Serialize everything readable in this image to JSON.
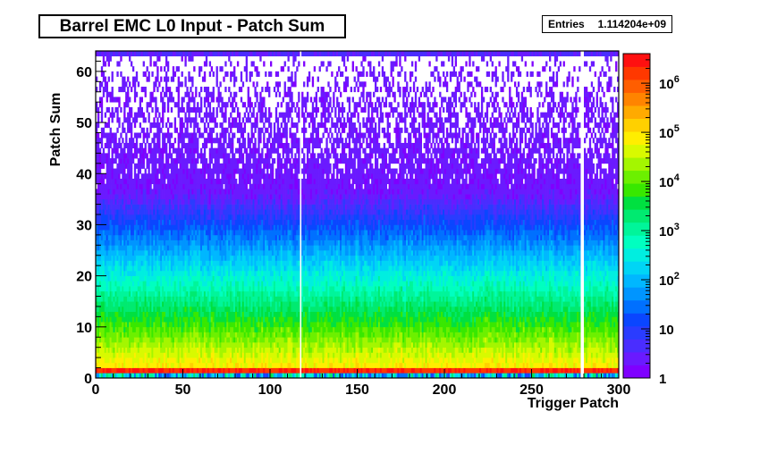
{
  "title": "Barrel EMC L0 Input - Patch Sum",
  "stats": {
    "label": "Entries",
    "value": "1.114204e+09"
  },
  "chart_data": {
    "type": "heatmap",
    "title": "Barrel EMC L0 Input - Patch Sum",
    "xlabel": "Trigger Patch",
    "ylabel": "Patch Sum",
    "xlim": [
      0,
      300
    ],
    "ylim": [
      0,
      64
    ],
    "x_ticks": [
      "0",
      "50",
      "100",
      "150",
      "200",
      "250",
      "300"
    ],
    "y_ticks": [
      "0",
      "10",
      "20",
      "30",
      "40",
      "50",
      "60"
    ],
    "z_scale": "log",
    "z_range": [
      1,
      4000000
    ],
    "z_ticks": [
      {
        "base": "1",
        "exp": ""
      },
      {
        "base": "10",
        "exp": ""
      },
      {
        "base": "10",
        "exp": "2"
      },
      {
        "base": "10",
        "exp": "3"
      },
      {
        "base": "10",
        "exp": "4"
      },
      {
        "base": "10",
        "exp": "5"
      },
      {
        "base": "10",
        "exp": "6"
      }
    ],
    "entries": "1.114204e+09",
    "empty_patches_x": [
      117,
      278,
      279
    ],
    "hot_row_y": 1,
    "palette": [
      "#7f00ff",
      "#6a1aff",
      "#4a2dff",
      "#2a3cff",
      "#0a46ff",
      "#0070ff",
      "#0095ff",
      "#00b7ff",
      "#00d5f5",
      "#00eee0",
      "#00ffc0",
      "#00f59a",
      "#00ea70",
      "#00e040",
      "#38e800",
      "#6cf000",
      "#a4f600",
      "#d8fa00",
      "#ffee00",
      "#ffd000",
      "#ffaa00",
      "#ff8400",
      "#ff5e00",
      "#ff3800",
      "#ff1010"
    ]
  }
}
